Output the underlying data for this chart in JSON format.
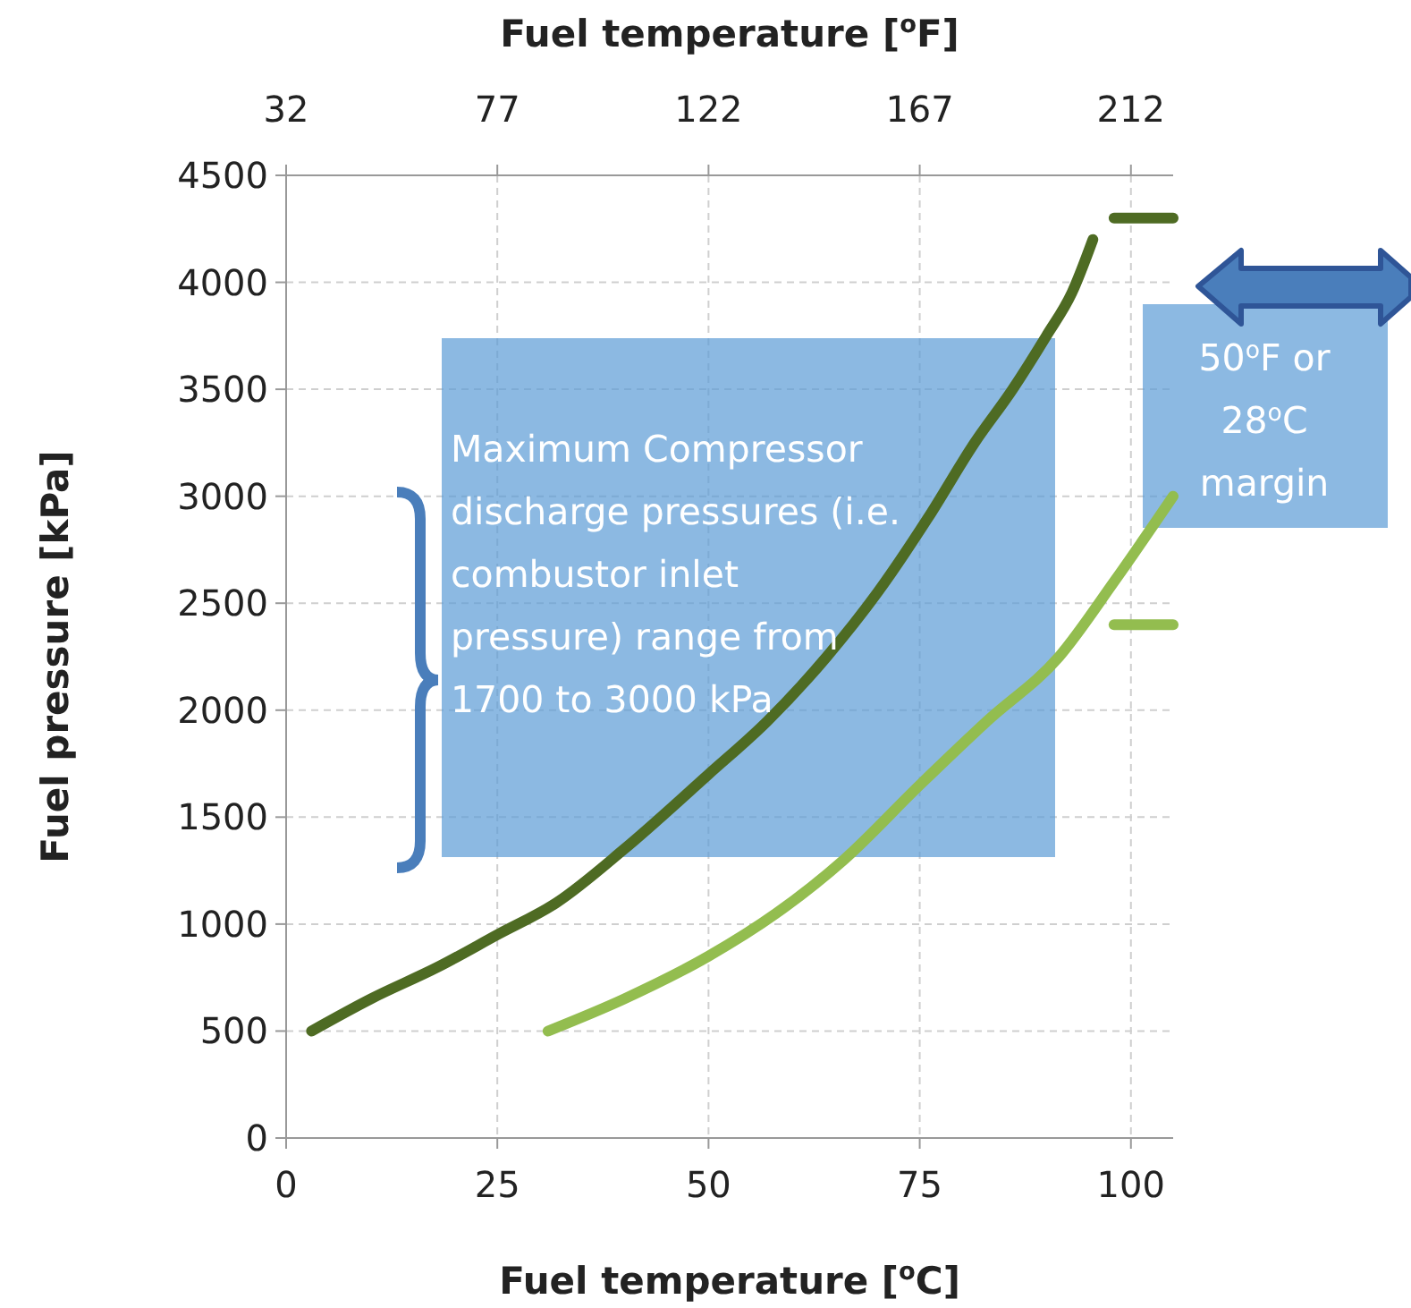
{
  "chart_data": {
    "type": "line",
    "xlabel": "Fuel temperature [$^{o}$C]",
    "ylabel": "Fuel pressure [kPa]",
    "x2label": "Fuel temperature [$^{o}$F]",
    "xlim": [
      0,
      105
    ],
    "xticks": [
      0,
      25,
      50,
      75,
      100
    ],
    "x2lim": [
      32,
      221
    ],
    "x2ticks": [
      32,
      77,
      122,
      167,
      212
    ],
    "ylim": [
      0,
      4500
    ],
    "yticks": [
      0,
      500,
      1000,
      1500,
      2000,
      2500,
      3000,
      3500,
      4000,
      4500
    ],
    "grid": true,
    "marker": "none",
    "line_style": "solid",
    "series": [
      {
        "color": "#4e6b23",
        "x": [
          3,
          10,
          18,
          25,
          32,
          40,
          50,
          57,
          64,
          70,
          76,
          81.5,
          86,
          90,
          93,
          95.5
        ],
        "values": [
          500,
          650,
          800,
          950,
          1100,
          1350,
          1700,
          1950,
          2250,
          2550,
          2900,
          3250,
          3500,
          3750,
          3950,
          4200
        ]
      },
      {
        "color": "#93bd4f",
        "x": [
          31,
          40,
          50,
          58,
          66,
          75,
          83,
          91.5,
          98,
          105
        ],
        "values": [
          500,
          650,
          850,
          1050,
          1300,
          1650,
          1950,
          2250,
          2600,
          3000
        ]
      },
      {
        "color": "#4e6b23",
        "x": [
          98,
          105
        ],
        "values": [
          4300,
          4300
        ]
      },
      {
        "color": "#93bd4f",
        "x": [
          98,
          105
        ],
        "values": [
          2400,
          2400
        ]
      }
    ],
    "annotations": [
      "Maximum Compressor\ndischarge pressures (i.e.\ncombustor inlet\npressure) range from\n1700 to 3000 kPa",
      "50$^{o}$F or\n28$^{o}$C\nmargin"
    ]
  }
}
